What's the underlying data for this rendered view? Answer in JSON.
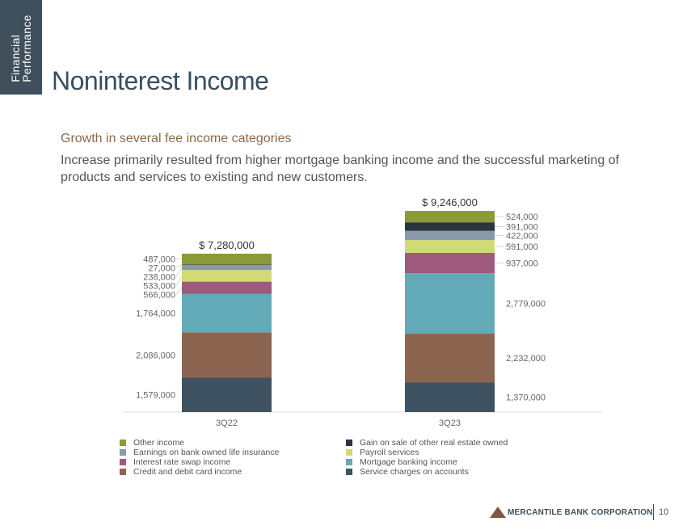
{
  "header": {
    "side_label_line1": "Financial",
    "side_label_line2": "Performance",
    "title": "Noninterest Income"
  },
  "subtitle": "Growth in several fee income categories",
  "description": "Increase primarily resulted from higher mortgage banking income and the successful marketing of products and services to existing and new customers.",
  "chart_data": {
    "type": "bar",
    "stacked": true,
    "categories": [
      "3Q22",
      "3Q23"
    ],
    "totals": [
      7280000,
      9246000
    ],
    "total_labels": [
      "$ 7,280,000",
      "$ 9,246,000"
    ],
    "series": [
      {
        "name": "Service charges on accounts",
        "color": "#3f5261",
        "values": [
          1579000,
          1370000
        ],
        "labels": [
          "1,579,000",
          "1,370,000"
        ]
      },
      {
        "name": "Credit and debit card income",
        "color": "#8c6550",
        "values": [
          2086000,
          2232000
        ],
        "labels": [
          "2,086,000",
          "2,232,000"
        ]
      },
      {
        "name": "Mortgage banking income",
        "color": "#63aab8",
        "values": [
          1764000,
          2779000
        ],
        "labels": [
          "1,764,000",
          "2,779,000"
        ]
      },
      {
        "name": "Interest rate swap income",
        "color": "#9e5a7c",
        "values": [
          566000,
          937000
        ],
        "labels": [
          "566,000",
          "937,000"
        ]
      },
      {
        "name": "Payroll services",
        "color": "#d1db75",
        "values": [
          533000,
          591000
        ],
        "labels": [
          "533,000",
          "591,000"
        ]
      },
      {
        "name": "Earnings on bank owned life insurance",
        "color": "#8a9aa8",
        "values": [
          238000,
          422000
        ],
        "labels": [
          "238,000",
          "422,000"
        ]
      },
      {
        "name": "Gain on sale of other real estate owned",
        "color": "#2a3540",
        "values": [
          27000,
          391000
        ],
        "labels": [
          "27,000",
          "391,000"
        ]
      },
      {
        "name": "Other income",
        "color": "#8a9a36",
        "values": [
          487000,
          524000
        ],
        "labels": [
          "487,000",
          "524,000"
        ]
      }
    ],
    "legend_order": [
      "Other income",
      "Gain on sale of other real estate owned",
      "Earnings on bank owned life insurance",
      "Payroll services",
      "Interest rate swap income",
      "Mortgage banking income",
      "Credit and debit card income",
      "Service charges on accounts"
    ],
    "legend": "bottom"
  },
  "footer": {
    "company": "MERCANTILE BANK CORPORATION",
    "page": "10"
  }
}
